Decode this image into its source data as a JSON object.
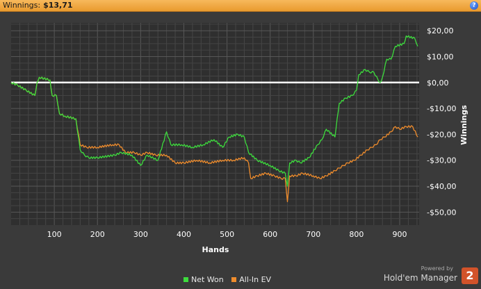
{
  "header": {
    "label": "Winnings:",
    "value": "$13,71",
    "help_icon": "help-icon",
    "help_glyph": "?"
  },
  "chart_data": {
    "type": "line",
    "xlabel": "Hands",
    "ylabel": "Winnings",
    "xlim": [
      0,
      945
    ],
    "ylim": [
      -55,
      23
    ],
    "x_ticks": [
      100,
      200,
      300,
      400,
      500,
      600,
      700,
      800,
      900
    ],
    "y_ticks": [
      20,
      10,
      0,
      -10,
      -20,
      -30,
      -40,
      -50
    ],
    "y_tick_labels": [
      "$20,00",
      "$10,00",
      "$0,00",
      "-$10,00",
      "-$20,00",
      "-$30,00",
      "-$40,00",
      "-$50,00"
    ],
    "grid": true,
    "zero_line": true,
    "legend_position": "bottom-center",
    "series": [
      {
        "name": "Net Won",
        "color": "#3ddc3d",
        "points": [
          [
            0,
            0
          ],
          [
            15,
            -1
          ],
          [
            35,
            -3
          ],
          [
            55,
            -5
          ],
          [
            60,
            0
          ],
          [
            65,
            2
          ],
          [
            90,
            1
          ],
          [
            95,
            -5
          ],
          [
            105,
            -5
          ],
          [
            112,
            -12
          ],
          [
            125,
            -13
          ],
          [
            150,
            -14
          ],
          [
            160,
            -26
          ],
          [
            170,
            -28
          ],
          [
            180,
            -29
          ],
          [
            200,
            -29
          ],
          [
            240,
            -28
          ],
          [
            255,
            -27
          ],
          [
            280,
            -28
          ],
          [
            300,
            -32
          ],
          [
            315,
            -28
          ],
          [
            340,
            -30
          ],
          [
            360,
            -19
          ],
          [
            370,
            -24
          ],
          [
            395,
            -24
          ],
          [
            420,
            -25
          ],
          [
            445,
            -24
          ],
          [
            470,
            -22
          ],
          [
            490,
            -25
          ],
          [
            505,
            -21
          ],
          [
            525,
            -20
          ],
          [
            540,
            -21
          ],
          [
            550,
            -27
          ],
          [
            570,
            -30
          ],
          [
            600,
            -32
          ],
          [
            620,
            -34
          ],
          [
            635,
            -35
          ],
          [
            640,
            -40
          ],
          [
            645,
            -31
          ],
          [
            660,
            -30
          ],
          [
            670,
            -31
          ],
          [
            690,
            -29
          ],
          [
            710,
            -24
          ],
          [
            720,
            -22
          ],
          [
            730,
            -18
          ],
          [
            750,
            -21
          ],
          [
            755,
            -14
          ],
          [
            760,
            -8
          ],
          [
            775,
            -6
          ],
          [
            790,
            -5
          ],
          [
            800,
            -3
          ],
          [
            805,
            3
          ],
          [
            820,
            5
          ],
          [
            830,
            4
          ],
          [
            840,
            4
          ],
          [
            850,
            1
          ],
          [
            855,
            0
          ],
          [
            860,
            2
          ],
          [
            870,
            9
          ],
          [
            880,
            9
          ],
          [
            890,
            14
          ],
          [
            910,
            15
          ],
          [
            915,
            18
          ],
          [
            935,
            17
          ],
          [
            942,
            14
          ]
        ]
      },
      {
        "name": "All-In EV",
        "color": "#ef8c2c",
        "points": [
          [
            0,
            0
          ],
          [
            15,
            -1
          ],
          [
            35,
            -3
          ],
          [
            55,
            -5
          ],
          [
            60,
            0
          ],
          [
            65,
            2
          ],
          [
            90,
            1
          ],
          [
            95,
            -5
          ],
          [
            105,
            -5
          ],
          [
            112,
            -12
          ],
          [
            125,
            -13
          ],
          [
            150,
            -14
          ],
          [
            160,
            -24
          ],
          [
            175,
            -25
          ],
          [
            200,
            -25
          ],
          [
            235,
            -24
          ],
          [
            250,
            -24
          ],
          [
            265,
            -27
          ],
          [
            285,
            -27
          ],
          [
            300,
            -28
          ],
          [
            315,
            -27
          ],
          [
            335,
            -28
          ],
          [
            360,
            -28
          ],
          [
            380,
            -31
          ],
          [
            400,
            -31
          ],
          [
            430,
            -30
          ],
          [
            460,
            -31
          ],
          [
            490,
            -30
          ],
          [
            515,
            -30
          ],
          [
            540,
            -29
          ],
          [
            550,
            -31
          ],
          [
            555,
            -37
          ],
          [
            570,
            -36
          ],
          [
            590,
            -35
          ],
          [
            610,
            -36
          ],
          [
            625,
            -37
          ],
          [
            635,
            -37
          ],
          [
            640,
            -46
          ],
          [
            645,
            -36
          ],
          [
            660,
            -36
          ],
          [
            675,
            -35
          ],
          [
            700,
            -36
          ],
          [
            715,
            -37
          ],
          [
            730,
            -36
          ],
          [
            750,
            -34
          ],
          [
            760,
            -33
          ],
          [
            770,
            -32
          ],
          [
            780,
            -31
          ],
          [
            795,
            -30
          ],
          [
            810,
            -28
          ],
          [
            825,
            -26
          ],
          [
            835,
            -25
          ],
          [
            845,
            -24
          ],
          [
            855,
            -22
          ],
          [
            865,
            -21
          ],
          [
            880,
            -19
          ],
          [
            890,
            -17
          ],
          [
            900,
            -18
          ],
          [
            915,
            -17
          ],
          [
            930,
            -17
          ],
          [
            942,
            -21
          ]
        ]
      }
    ]
  },
  "branding": {
    "powered": "Powered by",
    "name": "Hold'em Manager",
    "badge": "2"
  }
}
